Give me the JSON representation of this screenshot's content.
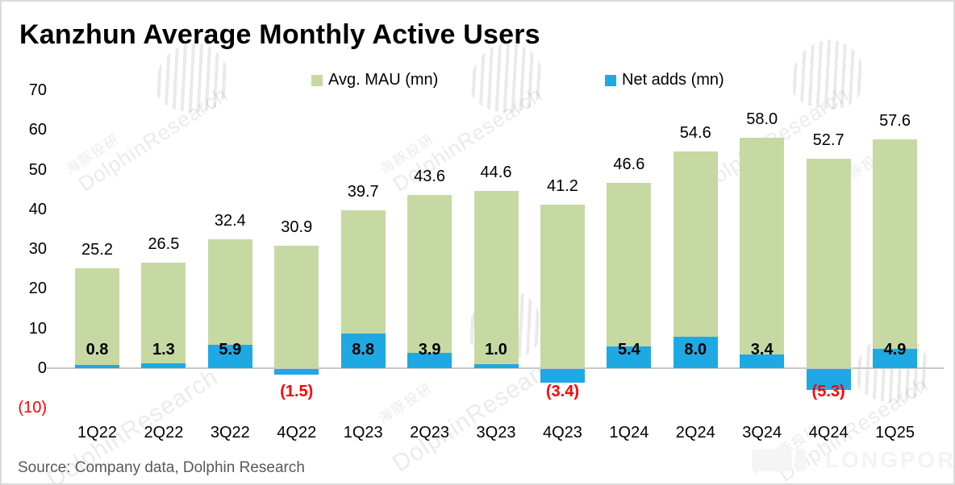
{
  "title": "Kanzhun Average Monthly Active Users",
  "legend": [
    {
      "label": "Avg. MAU (mn)",
      "color": "#c6d9a2"
    },
    {
      "label": "Net adds (mn)",
      "color": "#1fa9e2"
    }
  ],
  "chart_data": {
    "type": "bar",
    "title": "Kanzhun Average Monthly Active Users",
    "categories": [
      "1Q22",
      "2Q22",
      "3Q22",
      "4Q22",
      "1Q23",
      "2Q23",
      "3Q23",
      "4Q23",
      "1Q24",
      "2Q24",
      "3Q24",
      "4Q24",
      "1Q25"
    ],
    "series": [
      {
        "name": "Avg. MAU (mn)",
        "color": "#c6d9a2",
        "values": [
          25.2,
          26.5,
          32.4,
          30.9,
          39.7,
          43.6,
          44.6,
          41.2,
          46.6,
          54.6,
          58.0,
          52.7,
          57.6
        ]
      },
      {
        "name": "Net adds (mn)",
        "color": "#1fa9e2",
        "values": [
          0.8,
          1.3,
          5.9,
          -1.5,
          8.8,
          3.9,
          1.0,
          -3.4,
          5.4,
          8.0,
          3.4,
          -5.3,
          4.9
        ]
      }
    ],
    "ylim": [
      -10,
      70
    ],
    "yticks": [
      70,
      60,
      50,
      40,
      30,
      20,
      10,
      0,
      -10
    ],
    "negative_label_style": "parentheses-red",
    "grid": false,
    "legend_position": "top"
  },
  "source": "Source: Company data, Dolphin Research",
  "watermark": {
    "zh": "海豚投研",
    "en": "DolphinResearch"
  },
  "logo_text": "LONGPORT",
  "colors": {
    "mau_bar": "#c6d9a2",
    "net_bar": "#1fa9e2",
    "negative_label": "#ff0000",
    "axis_line": "#c9c9c9",
    "source_text": "#595959"
  }
}
